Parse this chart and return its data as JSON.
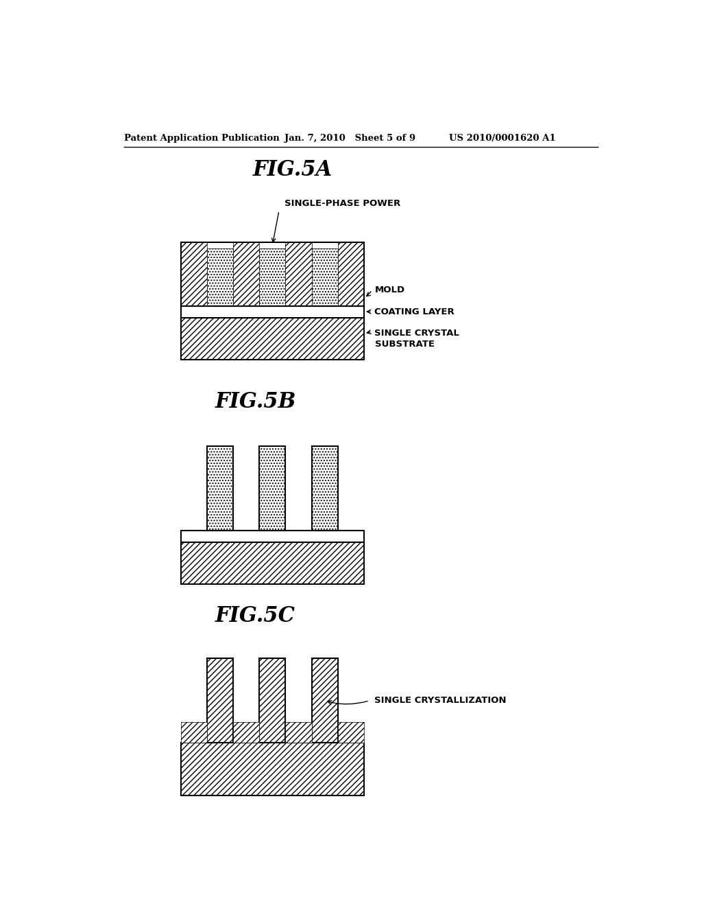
{
  "header_left": "Patent Application Publication",
  "header_mid": "Jan. 7, 2010   Sheet 5 of 9",
  "header_right": "US 2010/0001620 A1",
  "fig5a_title": "FIG.5A",
  "fig5b_title": "FIG.5B",
  "fig5c_title": "FIG.5C",
  "label_single_phase": "SINGLE-PHASE POWER",
  "label_mold": "MOLD",
  "label_coating": "COATING LAYER",
  "label_substrate": "SINGLE CRYSTAL\nSUBSTRATE",
  "label_crystallization": "SINGLE CRYSTALLIZATION",
  "bg_color": "#ffffff",
  "line_color": "#000000"
}
